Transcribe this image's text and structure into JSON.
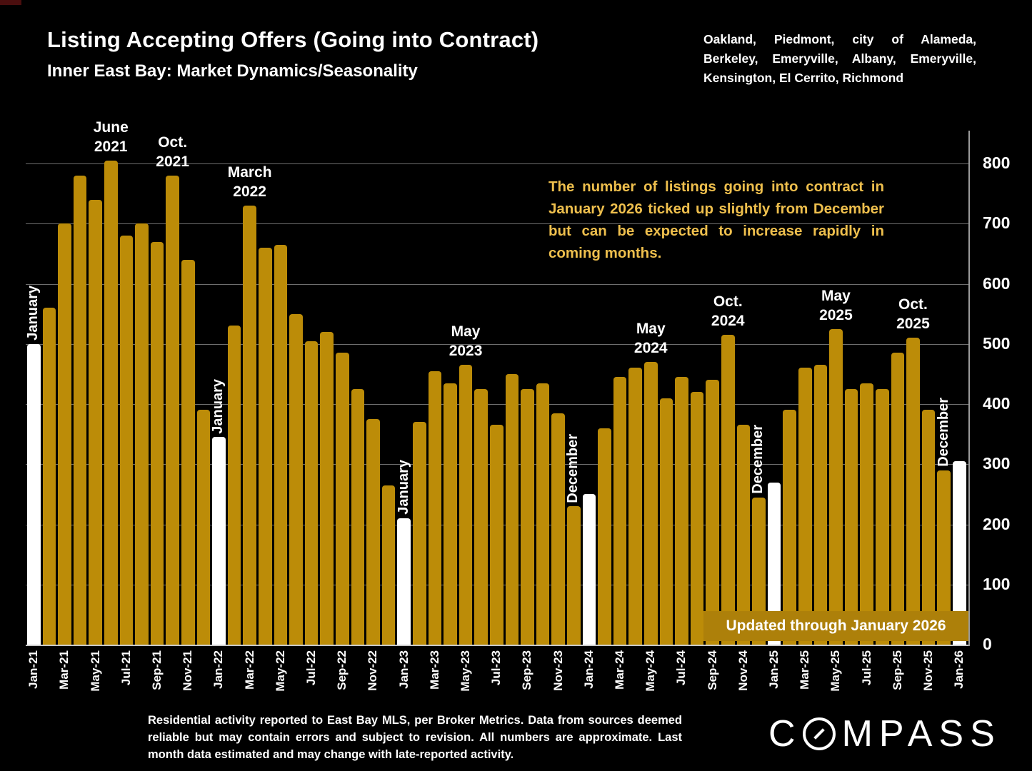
{
  "header": {
    "title": "Listing Accepting Offers (Going into Contract)",
    "subtitle": "Inner East Bay: Market Dynamics/Seasonality",
    "region": "Oakland, Piedmont, city of Alameda, Berkeley, Emeryville, Albany, Emeryville, Kensington, El Cerrito, Richmond"
  },
  "annotation": "The number of listings going into contract in January 2026 ticked up slightly from December but can be expected to increase rapidly in coming months.",
  "updated_banner": "Updated through January 2026",
  "footer": "Residential activity reported to East Bay MLS, per Broker Metrics. Data from sources deemed reliable but may contain errors and subject to revision. All numbers are approximate. Last month data estimated and may change with late-reported activity.",
  "logo": {
    "prefix": "C",
    "suffix": "MPASS"
  },
  "colors": {
    "background": "#000000",
    "bar": "#bc8c08",
    "bar_highlight": "#ffffff",
    "accent_text": "#eebf4d",
    "banner_bg": "#ad800a",
    "grid": "#6e6e6e"
  },
  "chart_data": {
    "type": "bar",
    "title": "Listing Accepting Offers (Going into Contract)",
    "xlabel": "",
    "ylabel": "",
    "ylim": [
      0,
      800
    ],
    "yticks": [
      0,
      100,
      200,
      300,
      400,
      500,
      600,
      700,
      800
    ],
    "grid": true,
    "x": [
      "Jan-21",
      "Feb-21",
      "Mar-21",
      "Apr-21",
      "May-21",
      "Jun-21",
      "Jul-21",
      "Aug-21",
      "Sep-21",
      "Oct-21",
      "Nov-21",
      "Dec-21",
      "Jan-22",
      "Feb-22",
      "Mar-22",
      "Apr-22",
      "May-22",
      "Jun-22",
      "Jul-22",
      "Aug-22",
      "Sep-22",
      "Oct-22",
      "Nov-22",
      "Dec-22",
      "Jan-23",
      "Feb-23",
      "Mar-23",
      "Apr-23",
      "May-23",
      "Jun-23",
      "Jul-23",
      "Aug-23",
      "Sep-23",
      "Oct-23",
      "Nov-23",
      "Dec-23",
      "Jan-24",
      "Feb-24",
      "Mar-24",
      "Apr-24",
      "May-24",
      "Jun-24",
      "Jul-24",
      "Aug-24",
      "Sep-24",
      "Oct-24",
      "Nov-24",
      "Dec-24",
      "Jan-25",
      "Feb-25",
      "Mar-25",
      "Apr-25",
      "May-25",
      "Jun-25",
      "Jul-25",
      "Aug-25",
      "Sep-25",
      "Oct-25",
      "Nov-25",
      "Dec-25",
      "Jan-26"
    ],
    "values": [
      500,
      560,
      700,
      780,
      740,
      805,
      680,
      700,
      670,
      780,
      640,
      390,
      345,
      530,
      730,
      660,
      665,
      550,
      505,
      520,
      485,
      425,
      375,
      265,
      210,
      370,
      455,
      435,
      465,
      425,
      365,
      450,
      425,
      435,
      385,
      230,
      250,
      360,
      445,
      460,
      470,
      410,
      445,
      420,
      440,
      515,
      365,
      245,
      270,
      390,
      460,
      465,
      525,
      425,
      435,
      425,
      485,
      510,
      390,
      290,
      305
    ],
    "highlight_months": [
      "Jan-21",
      "Jan-22",
      "Jan-23",
      "Jan-24",
      "Jan-25",
      "Jan-26"
    ],
    "x_tick_labels": [
      "Jan-21",
      "Mar-21",
      "May-21",
      "Jul-21",
      "Sep-21",
      "Nov-21",
      "Jan-22",
      "Mar-22",
      "May-22",
      "Jul-22",
      "Sep-22",
      "Nov-22",
      "Jan-23",
      "Mar-23",
      "May-23",
      "Jul-23",
      "Sep-23",
      "Nov-23",
      "Jan-24",
      "Mar-24",
      "May-24",
      "Jul-24",
      "Sep-24",
      "Nov-24",
      "Jan-25",
      "Mar-25",
      "May-25",
      "Jul-25",
      "Sep-25",
      "Nov-25",
      "Jan-26"
    ],
    "peak_labels": [
      {
        "line1": "June",
        "line2": "2021",
        "month": "Jun-21"
      },
      {
        "line1": "Oct.",
        "line2": "2021",
        "month": "Oct-21"
      },
      {
        "line1": "March",
        "line2": "2022",
        "month": "Mar-22"
      },
      {
        "line1": "May",
        "line2": "2023",
        "month": "May-23"
      },
      {
        "line1": "May",
        "line2": "2024",
        "month": "May-24"
      },
      {
        "line1": "Oct.",
        "line2": "2024",
        "month": "Oct-24"
      },
      {
        "line1": "May",
        "line2": "2025",
        "month": "May-25"
      },
      {
        "line1": "Oct.",
        "line2": "2025",
        "month": "Oct-25"
      }
    ],
    "bar_labels": [
      {
        "text": "January",
        "month": "Jan-21"
      },
      {
        "text": "January",
        "month": "Jan-22"
      },
      {
        "text": "January",
        "month": "Jan-23"
      },
      {
        "text": "December",
        "month": "Dec-23"
      },
      {
        "text": "December",
        "month": "Dec-24"
      },
      {
        "text": "December",
        "month": "Dec-25"
      }
    ],
    "legend": null
  }
}
